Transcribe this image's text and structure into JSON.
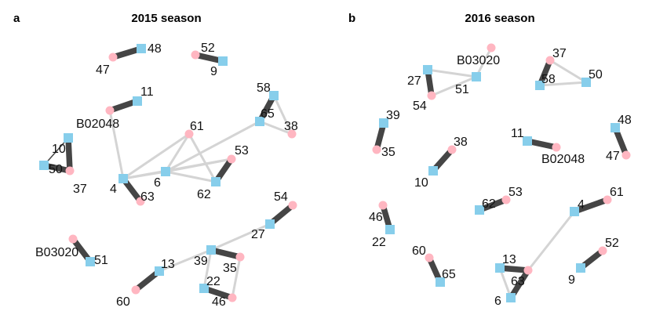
{
  "colors": {
    "square_node": "#87CEEB",
    "circle_node": "#FFB6C1",
    "strong_edge": "#454545",
    "weak_edge": "#d4d4d4"
  },
  "panels": [
    {
      "id": "a",
      "letter": "a",
      "title": "2015 season",
      "nodes": [
        {
          "id": "48",
          "label": "48",
          "shape": "square"
        },
        {
          "id": "47",
          "label": "47",
          "shape": "circle"
        },
        {
          "id": "52",
          "label": "52",
          "shape": "circle"
        },
        {
          "id": "9",
          "label": "9",
          "shape": "square"
        },
        {
          "id": "11",
          "label": "11",
          "shape": "square"
        },
        {
          "id": "B02048",
          "label": "B02048",
          "shape": "circle"
        },
        {
          "id": "10",
          "label": "10",
          "shape": "square"
        },
        {
          "id": "50",
          "label": "50",
          "shape": "square"
        },
        {
          "id": "37",
          "label": "37",
          "shape": "circle"
        },
        {
          "id": "58",
          "label": "58",
          "shape": "square"
        },
        {
          "id": "65",
          "label": "65",
          "shape": "square"
        },
        {
          "id": "38",
          "label": "38",
          "shape": "circle"
        },
        {
          "id": "61",
          "label": "61",
          "shape": "circle"
        },
        {
          "id": "53",
          "label": "53",
          "shape": "circle"
        },
        {
          "id": "4",
          "label": "4",
          "shape": "square"
        },
        {
          "id": "6",
          "label": "6",
          "shape": "square"
        },
        {
          "id": "63",
          "label": "63",
          "shape": "circle"
        },
        {
          "id": "62",
          "label": "62",
          "shape": "square"
        },
        {
          "id": "54",
          "label": "54",
          "shape": "circle"
        },
        {
          "id": "27",
          "label": "27",
          "shape": "square"
        },
        {
          "id": "B03020",
          "label": "B03020",
          "shape": "circle"
        },
        {
          "id": "51",
          "label": "51",
          "shape": "square"
        },
        {
          "id": "13",
          "label": "13",
          "shape": "square"
        },
        {
          "id": "60",
          "label": "60",
          "shape": "circle"
        },
        {
          "id": "39",
          "label": "39",
          "shape": "square"
        },
        {
          "id": "35",
          "label": "35",
          "shape": "circle"
        },
        {
          "id": "22",
          "label": "22",
          "shape": "square"
        },
        {
          "id": "46",
          "label": "46",
          "shape": "circle"
        }
      ],
      "edges": [
        {
          "source": "48",
          "target": "47",
          "strength": "strong"
        },
        {
          "source": "52",
          "target": "9",
          "strength": "strong"
        },
        {
          "source": "11",
          "target": "B02048",
          "strength": "strong"
        },
        {
          "source": "10",
          "target": "37",
          "strength": "strong"
        },
        {
          "source": "50",
          "target": "37",
          "strength": "strong"
        },
        {
          "source": "10",
          "target": "50",
          "strength": "thin"
        },
        {
          "source": "58",
          "target": "65",
          "strength": "strong"
        },
        {
          "source": "58",
          "target": "38",
          "strength": "weak"
        },
        {
          "source": "65",
          "target": "38",
          "strength": "weak"
        },
        {
          "source": "B02048",
          "target": "4",
          "strength": "weak"
        },
        {
          "source": "4",
          "target": "63",
          "strength": "strong"
        },
        {
          "source": "4",
          "target": "6",
          "strength": "weak"
        },
        {
          "source": "4",
          "target": "61",
          "strength": "weak"
        },
        {
          "source": "4",
          "target": "53",
          "strength": "weak"
        },
        {
          "source": "6",
          "target": "61",
          "strength": "weak"
        },
        {
          "source": "6",
          "target": "53",
          "strength": "weak"
        },
        {
          "source": "6",
          "target": "62",
          "strength": "weak"
        },
        {
          "source": "6",
          "target": "65",
          "strength": "weak"
        },
        {
          "source": "61",
          "target": "62",
          "strength": "weak"
        },
        {
          "source": "62",
          "target": "53",
          "strength": "strong"
        },
        {
          "source": "54",
          "target": "27",
          "strength": "strong"
        },
        {
          "source": "27",
          "target": "39",
          "strength": "weak"
        },
        {
          "source": "B03020",
          "target": "51",
          "strength": "strong"
        },
        {
          "source": "13",
          "target": "60",
          "strength": "strong"
        },
        {
          "source": "13",
          "target": "39",
          "strength": "weak"
        },
        {
          "source": "39",
          "target": "35",
          "strength": "strong"
        },
        {
          "source": "39",
          "target": "22",
          "strength": "weak"
        },
        {
          "source": "22",
          "target": "46",
          "strength": "strong"
        },
        {
          "source": "35",
          "target": "46",
          "strength": "weak"
        }
      ]
    },
    {
      "id": "b",
      "letter": "b",
      "title": "2016 season",
      "nodes": [
        {
          "id": "B03020",
          "label": "B03020",
          "shape": "circle"
        },
        {
          "id": "27",
          "label": "27",
          "shape": "square"
        },
        {
          "id": "51",
          "label": "51",
          "shape": "square"
        },
        {
          "id": "54",
          "label": "54",
          "shape": "circle"
        },
        {
          "id": "37",
          "label": "37",
          "shape": "circle"
        },
        {
          "id": "58",
          "label": "58",
          "shape": "square"
        },
        {
          "id": "50",
          "label": "50",
          "shape": "square"
        },
        {
          "id": "39",
          "label": "39",
          "shape": "square"
        },
        {
          "id": "35",
          "label": "35",
          "shape": "circle"
        },
        {
          "id": "38",
          "label": "38",
          "shape": "circle"
        },
        {
          "id": "10",
          "label": "10",
          "shape": "square"
        },
        {
          "id": "11",
          "label": "11",
          "shape": "square"
        },
        {
          "id": "B02048",
          "label": "B02048",
          "shape": "circle"
        },
        {
          "id": "48",
          "label": "48",
          "shape": "square"
        },
        {
          "id": "47",
          "label": "47",
          "shape": "circle"
        },
        {
          "id": "53",
          "label": "53",
          "shape": "circle"
        },
        {
          "id": "62",
          "label": "62",
          "shape": "square"
        },
        {
          "id": "61",
          "label": "61",
          "shape": "circle"
        },
        {
          "id": "4",
          "label": "4",
          "shape": "square"
        },
        {
          "id": "46",
          "label": "46",
          "shape": "circle"
        },
        {
          "id": "22",
          "label": "22",
          "shape": "square"
        },
        {
          "id": "60",
          "label": "60",
          "shape": "circle"
        },
        {
          "id": "65",
          "label": "65",
          "shape": "square"
        },
        {
          "id": "13",
          "label": "13",
          "shape": "square"
        },
        {
          "id": "63",
          "label": "63",
          "shape": "circle"
        },
        {
          "id": "6",
          "label": "6",
          "shape": "square"
        },
        {
          "id": "52",
          "label": "52",
          "shape": "circle"
        },
        {
          "id": "9",
          "label": "9",
          "shape": "square"
        }
      ],
      "edges": [
        {
          "source": "B03020",
          "target": "51",
          "strength": "weak"
        },
        {
          "source": "27",
          "target": "51",
          "strength": "weak"
        },
        {
          "source": "27",
          "target": "54",
          "strength": "strong"
        },
        {
          "source": "54",
          "target": "51",
          "strength": "weak"
        },
        {
          "source": "37",
          "target": "58",
          "strength": "strong"
        },
        {
          "source": "37",
          "target": "50",
          "strength": "weak"
        },
        {
          "source": "58",
          "target": "50",
          "strength": "weak"
        },
        {
          "source": "39",
          "target": "35",
          "strength": "strong"
        },
        {
          "source": "38",
          "target": "10",
          "strength": "strong"
        },
        {
          "source": "11",
          "target": "B02048",
          "strength": "strong"
        },
        {
          "source": "48",
          "target": "47",
          "strength": "strong"
        },
        {
          "source": "62",
          "target": "53",
          "strength": "strong"
        },
        {
          "source": "4",
          "target": "61",
          "strength": "strong"
        },
        {
          "source": "4",
          "target": "63",
          "strength": "weak"
        },
        {
          "source": "46",
          "target": "22",
          "strength": "strong"
        },
        {
          "source": "60",
          "target": "65",
          "strength": "strong"
        },
        {
          "source": "13",
          "target": "63",
          "strength": "strong"
        },
        {
          "source": "13",
          "target": "6",
          "strength": "weak"
        },
        {
          "source": "63",
          "target": "6",
          "strength": "strong"
        },
        {
          "source": "52",
          "target": "9",
          "strength": "strong"
        }
      ]
    }
  ]
}
